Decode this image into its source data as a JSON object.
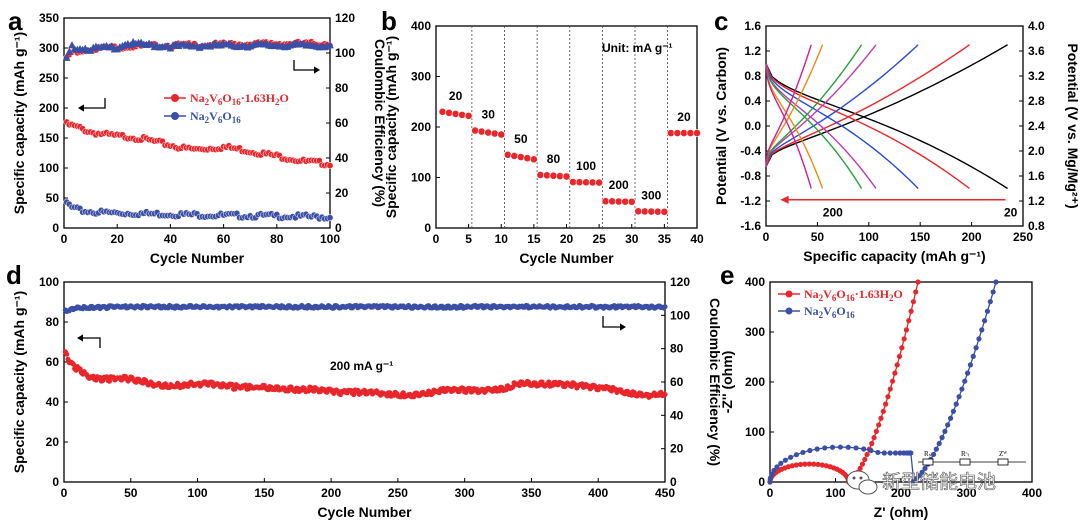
{
  "watermark": {
    "text": "新型储能电池",
    "icon": "wechat-chat-icon"
  },
  "chart_data": [
    {
      "id": "a",
      "panel_label": "a",
      "type": "scatter",
      "xlabel": "Cycle Number",
      "ylabel": "Specific capacity (mAh g⁻¹)",
      "y2label": "Coulombic Efficiency (%)",
      "xlim": [
        0,
        100
      ],
      "ylim": [
        0,
        350
      ],
      "y2lim": [
        0,
        120
      ],
      "xticks": [
        "0",
        "20",
        "40",
        "60",
        "80",
        "100"
      ],
      "yticks": [
        "0",
        "50",
        "100",
        "150",
        "200",
        "250",
        "300",
        "350"
      ],
      "y2ticks": [
        "0",
        "20",
        "40",
        "60",
        "80",
        "100",
        "120"
      ],
      "legend": [
        {
          "pre": "Na",
          "s1": "2",
          "mid": "V",
          "s2": "6",
          "post": "O",
          "s3": "16",
          "tail": "·1.63H",
          "s4": "2",
          "end": "O",
          "color": "#e8262b"
        },
        {
          "pre": "Na",
          "s1": "2",
          "mid": "V",
          "s2": "6",
          "post": "O",
          "s3": "16",
          "tail": "",
          "s4": "",
          "end": "",
          "color": "#3b4fa5"
        }
      ],
      "series": [
        {
          "name": "Na2V6O16·1.63H2O capacity",
          "color": "#e8262b",
          "marker": "circle",
          "axis": "left",
          "pts": [
            [
              1,
              175
            ],
            [
              5,
              170
            ],
            [
              10,
              162
            ],
            [
              15,
              158
            ],
            [
              20,
              155
            ],
            [
              25,
              154
            ],
            [
              30,
              150
            ],
            [
              35,
              145
            ],
            [
              40,
              140
            ],
            [
              45,
              135
            ],
            [
              50,
              133
            ],
            [
              55,
              135
            ],
            [
              60,
              137
            ],
            [
              65,
              134
            ],
            [
              70,
              130
            ],
            [
              75,
              126
            ],
            [
              80,
              122
            ],
            [
              85,
              118
            ],
            [
              90,
              113
            ],
            [
              95,
              111
            ],
            [
              100,
              109
            ]
          ]
        },
        {
          "name": "Na2V6O16 capacity",
          "color": "#3b4fa5",
          "marker": "circle",
          "axis": "left",
          "pts": [
            [
              1,
              44
            ],
            [
              3,
              36
            ],
            [
              6,
              31
            ],
            [
              10,
              29
            ],
            [
              20,
              27
            ],
            [
              40,
              25
            ],
            [
              60,
              23
            ],
            [
              80,
              22
            ],
            [
              100,
              20
            ]
          ]
        },
        {
          "name": "Na2V6O16·1.63H2O CE",
          "color": "#e8262b",
          "marker": "circle",
          "axis": "right",
          "pts": [
            [
              1,
              98
            ],
            [
              3,
              101
            ],
            [
              10,
              103
            ],
            [
              20,
              104
            ],
            [
              40,
              105
            ],
            [
              60,
              105.5
            ],
            [
              80,
              106
            ],
            [
              100,
              106
            ]
          ]
        },
        {
          "name": "Na2V6O16 CE",
          "color": "#3b4fa5",
          "marker": "triangle",
          "axis": "right",
          "pts": [
            [
              1,
              97
            ],
            [
              3,
              104
            ],
            [
              10,
              103
            ],
            [
              20,
              104
            ],
            [
              23,
              106
            ],
            [
              40,
              104.5
            ],
            [
              60,
              105
            ],
            [
              80,
              105
            ],
            [
              100,
              105
            ]
          ]
        }
      ]
    },
    {
      "id": "b",
      "panel_label": "b",
      "type": "scatter",
      "xlabel": "Cycle Number",
      "ylabel": "Specific capacity (mAh g⁻¹)",
      "xlim": [
        0,
        40
      ],
      "ylim": [
        0,
        400
      ],
      "xticks": [
        "0",
        "5",
        "10",
        "15",
        "20",
        "25",
        "30",
        "35",
        "40"
      ],
      "yticks": [
        "0",
        "100",
        "200",
        "300",
        "400"
      ],
      "unit_label": "Unit: mA g⁻¹",
      "rate_labels": [
        "20",
        "30",
        "50",
        "80",
        "100",
        "200",
        "300",
        "20"
      ],
      "segments": [
        {
          "rate": 20,
          "from": 1,
          "to": 5,
          "start": 230,
          "end": 222
        },
        {
          "rate": 30,
          "from": 6,
          "to": 10,
          "start": 193,
          "end": 185
        },
        {
          "rate": 50,
          "from": 11,
          "to": 15,
          "start": 145,
          "end": 136
        },
        {
          "rate": 80,
          "from": 16,
          "to": 20,
          "start": 105,
          "end": 102
        },
        {
          "rate": 100,
          "from": 21,
          "to": 25,
          "start": 91,
          "end": 90
        },
        {
          "rate": 200,
          "from": 26,
          "to": 30,
          "start": 53,
          "end": 52
        },
        {
          "rate": 300,
          "from": 31,
          "to": 35,
          "start": 33,
          "end": 32
        },
        {
          "rate": 20,
          "from": 36,
          "to": 40,
          "start": 188,
          "end": 188
        }
      ],
      "color": "#e8262b"
    },
    {
      "id": "c",
      "panel_label": "c",
      "type": "line",
      "xlabel": "Specific capacity (mAh g⁻¹)",
      "ylabel": "Potential (V vs. Carbon)",
      "y2label": "Potential (V vs. Mg/Mg²⁺)",
      "xlim": [
        0,
        250
      ],
      "ylim": [
        -1.6,
        1.6
      ],
      "y2lim": [
        0.8,
        4.0
      ],
      "xticks": [
        "0",
        "50",
        "100",
        "150",
        "200",
        "250"
      ],
      "yticks": [
        "-1.6",
        "-1.2",
        "-0.8",
        "-0.4",
        "0.0",
        "0.4",
        "0.8",
        "1.2",
        "1.6"
      ],
      "y2ticks": [
        "0.8",
        "1.2",
        "1.6",
        "2.0",
        "2.4",
        "2.8",
        "3.2",
        "3.6",
        "4.0"
      ],
      "arrow_from": "20",
      "arrow_to": "200",
      "series": [
        {
          "name": "20 mA g-1",
          "color": "#000000",
          "cap": 235
        },
        {
          "name": "30 mA g-1",
          "color": "#e8262b",
          "cap": 198
        },
        {
          "name": "50 mA g-1",
          "color": "#2a4bd7",
          "cap": 148
        },
        {
          "name": "80 mA g-1",
          "color": "#c13ab3",
          "cap": 107
        },
        {
          "name": "100 mA g-1",
          "color": "#27a23a",
          "cap": 93
        },
        {
          "name": "200 mA g-1",
          "color": "#f08a16",
          "cap": 55
        },
        {
          "name": "300 mA g-1",
          "color": "#d11f8c",
          "cap": 44
        }
      ]
    },
    {
      "id": "d",
      "panel_label": "d",
      "type": "scatter",
      "xlabel": "Cycle Number",
      "ylabel": "Specific capacity (mAh g⁻¹)",
      "y2label": "Coulombic Efficiency (%)",
      "xlim": [
        0,
        450
      ],
      "ylim": [
        0,
        100
      ],
      "y2lim": [
        0,
        120
      ],
      "xticks": [
        "0",
        "50",
        "100",
        "150",
        "200",
        "250",
        "300",
        "350",
        "400",
        "450"
      ],
      "yticks": [
        "0",
        "20",
        "40",
        "60",
        "80",
        "100"
      ],
      "y2ticks": [
        "0",
        "20",
        "40",
        "60",
        "80",
        "100",
        "120"
      ],
      "annotation": "200 mA g⁻¹",
      "series": [
        {
          "name": "capacity",
          "color": "#e8262b",
          "axis": "left",
          "pts": [
            [
              1,
              65
            ],
            [
              5,
              60
            ],
            [
              12,
              56
            ],
            [
              20,
              53
            ],
            [
              30,
              52
            ],
            [
              45,
              52.5
            ],
            [
              55,
              51.5
            ],
            [
              70,
              49
            ],
            [
              80,
              48.5
            ],
            [
              95,
              49.5
            ],
            [
              110,
              49.5
            ],
            [
              130,
              48
            ],
            [
              150,
              48
            ],
            [
              165,
              47
            ],
            [
              185,
              47
            ],
            [
              205,
              45.5
            ],
            [
              230,
              45.5
            ],
            [
              255,
              44
            ],
            [
              270,
              45
            ],
            [
              290,
              47
            ],
            [
              310,
              46
            ],
            [
              330,
              47.5
            ],
            [
              340,
              50
            ],
            [
              360,
              49.5
            ],
            [
              375,
              49.5
            ],
            [
              395,
              48
            ],
            [
              410,
              47
            ],
            [
              425,
              45
            ],
            [
              440,
              44
            ],
            [
              450,
              45
            ]
          ]
        },
        {
          "name": "Coulombic efficiency",
          "color": "#3b4fa5",
          "axis": "right",
          "pts": [
            [
              1,
              103
            ],
            [
              10,
              105
            ],
            [
              50,
              105.5
            ],
            [
              150,
              105.5
            ],
            [
              300,
              105.5
            ],
            [
              450,
              105.5
            ]
          ]
        }
      ]
    },
    {
      "id": "e",
      "panel_label": "e",
      "type": "scatter",
      "xlabel": "Z' (ohm)",
      "ylabel": "-Z'' (ohm)",
      "xlim": [
        0,
        400
      ],
      "ylim": [
        0,
        400
      ],
      "xticks": [
        "0",
        "100",
        "200",
        "300",
        "400"
      ],
      "yticks": [
        "0",
        "100",
        "200",
        "300",
        "400"
      ],
      "circuit_labels": [
        "Rₛ",
        "Rᶜₜ",
        "Zᵂ"
      ],
      "legend": [
        {
          "pre": "Na",
          "s1": "2",
          "mid": "V",
          "s2": "6",
          "post": "O",
          "s3": "16",
          "tail": "·1.63H",
          "s4": "2",
          "end": "O",
          "color": "#e8262b"
        },
        {
          "pre": "Na",
          "s1": "2",
          "mid": "V",
          "s2": "6",
          "post": "O",
          "s3": "16",
          "tail": "",
          "s4": "",
          "end": "",
          "color": "#3b4fa5"
        }
      ],
      "series": [
        {
          "name": "Na2V6O16·1.63H2O",
          "color": "#e8262b",
          "semicircle": [
            0,
            120
          ],
          "tail_start": [
            120,
            5
          ],
          "tail_end": [
            226,
            400
          ]
        },
        {
          "name": "Na2V6O16",
          "color": "#3b4fa5",
          "semicircle": [
            0,
            215
          ],
          "tail_start": [
            215,
            60
          ],
          "tail_end": [
            345,
            400
          ]
        }
      ]
    }
  ]
}
